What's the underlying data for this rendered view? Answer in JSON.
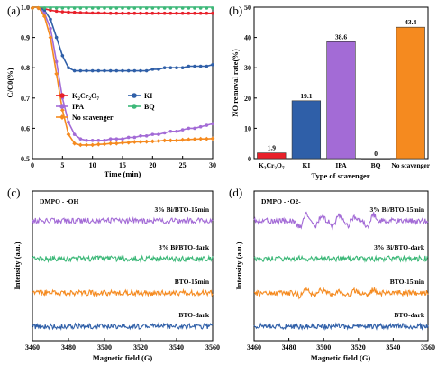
{
  "chart_data": [
    {
      "panel": "(a)",
      "type": "line",
      "xlabel": "Time (min)",
      "ylabel": "C/C0(%)",
      "xlim": [
        0,
        30
      ],
      "ylim": [
        0.5,
        1.0
      ],
      "xticks": [
        "0",
        "5",
        "10",
        "15",
        "20",
        "25",
        "30"
      ],
      "yticks": [
        "0.5",
        "0.6",
        "0.7",
        "0.8",
        "0.9",
        "1.0"
      ],
      "legend_position": "bottom-center",
      "series": [
        {
          "name": "K2Cr2O7",
          "color": "#e8202a",
          "marker": "circle",
          "x": [
            0,
            1,
            2,
            3,
            4,
            5,
            6,
            7,
            8,
            9,
            10,
            11,
            12,
            13,
            14,
            15,
            16,
            17,
            18,
            19,
            20,
            21,
            22,
            23,
            24,
            25,
            26,
            27,
            28,
            29,
            30
          ],
          "y": [
            1.0,
            1.0,
            0.995,
            0.99,
            0.987,
            0.985,
            0.984,
            0.983,
            0.982,
            0.982,
            0.981,
            0.981,
            0.981,
            0.98,
            0.98,
            0.98,
            0.98,
            0.98,
            0.98,
            0.98,
            0.98,
            0.98,
            0.98,
            0.98,
            0.98,
            0.98,
            0.98,
            0.98,
            0.98,
            0.98,
            0.98
          ]
        },
        {
          "name": "KI",
          "color": "#2f5fa8",
          "marker": "circle",
          "x": [
            0,
            1,
            2,
            3,
            4,
            5,
            6,
            7,
            8,
            9,
            10,
            11,
            12,
            13,
            14,
            15,
            16,
            17,
            18,
            19,
            20,
            21,
            22,
            23,
            24,
            25,
            26,
            27,
            28,
            29,
            30
          ],
          "y": [
            1.0,
            1.0,
            0.99,
            0.96,
            0.9,
            0.84,
            0.8,
            0.79,
            0.79,
            0.79,
            0.79,
            0.79,
            0.79,
            0.79,
            0.79,
            0.79,
            0.79,
            0.79,
            0.79,
            0.79,
            0.795,
            0.795,
            0.8,
            0.8,
            0.8,
            0.8,
            0.805,
            0.805,
            0.805,
            0.805,
            0.81
          ]
        },
        {
          "name": "IPA",
          "color": "#a36bd6",
          "marker": "circle",
          "x": [
            0,
            1,
            2,
            3,
            4,
            5,
            6,
            7,
            8,
            9,
            10,
            11,
            12,
            13,
            14,
            15,
            16,
            17,
            18,
            19,
            20,
            21,
            22,
            23,
            24,
            25,
            26,
            27,
            28,
            29,
            30
          ],
          "y": [
            1.0,
            1.0,
            0.98,
            0.93,
            0.82,
            0.7,
            0.62,
            0.58,
            0.565,
            0.56,
            0.56,
            0.56,
            0.56,
            0.565,
            0.565,
            0.565,
            0.57,
            0.57,
            0.575,
            0.575,
            0.58,
            0.58,
            0.585,
            0.59,
            0.59,
            0.595,
            0.6,
            0.6,
            0.605,
            0.61,
            0.615
          ]
        },
        {
          "name": "BQ",
          "color": "#3cb878",
          "marker": "circle",
          "x": [
            0,
            1,
            2,
            3,
            4,
            5,
            6,
            7,
            8,
            9,
            10,
            11,
            12,
            13,
            14,
            15,
            16,
            17,
            18,
            19,
            20,
            21,
            22,
            23,
            24,
            25,
            26,
            27,
            28,
            29,
            30
          ],
          "y": [
            1.0,
            1.0,
            1.0,
            1.0,
            1.0,
            1.01,
            1.02,
            1.03,
            1.03,
            1.03,
            1.025,
            1.02,
            1.02,
            1.02,
            1.02,
            1.02,
            1.02,
            1.02,
            1.02,
            1.02,
            1.02,
            1.02,
            1.02,
            1.02,
            1.02,
            1.02,
            1.02,
            1.02,
            1.02,
            1.02,
            1.02
          ]
        },
        {
          "name": "No scavenger",
          "color": "#f58a1f",
          "marker": "diamond",
          "x": [
            0,
            1,
            2,
            3,
            4,
            5,
            6,
            7,
            8,
            9,
            10,
            11,
            12,
            13,
            14,
            15,
            16,
            17,
            18,
            19,
            20,
            21,
            22,
            23,
            24,
            25,
            26,
            27,
            28,
            29,
            30
          ],
          "y": [
            1.0,
            1.0,
            0.97,
            0.9,
            0.78,
            0.66,
            0.58,
            0.55,
            0.545,
            0.545,
            0.545,
            0.547,
            0.548,
            0.55,
            0.55,
            0.552,
            0.553,
            0.555,
            0.555,
            0.556,
            0.557,
            0.558,
            0.56,
            0.56,
            0.56,
            0.562,
            0.563,
            0.564,
            0.565,
            0.565,
            0.566
          ]
        }
      ]
    },
    {
      "panel": "(b)",
      "type": "bar",
      "xlabel": "Type of scavenger",
      "ylabel": "NO removal rate(%)",
      "ylim": [
        0,
        50
      ],
      "yticks": [
        "0",
        "10",
        "20",
        "30",
        "40",
        "50"
      ],
      "categories": [
        "K2Cr2O7",
        "KI",
        "IPA",
        "BQ",
        "No scavenger"
      ],
      "values": [
        1.9,
        19.1,
        38.6,
        0,
        43.4
      ],
      "value_labels": [
        "1.9",
        "19.1",
        "38.6",
        "0",
        "43.4"
      ],
      "colors": [
        "#e8202a",
        "#2f5fa8",
        "#a36bd6",
        "#3cb878",
        "#f58a1f"
      ]
    },
    {
      "panel": "(c)",
      "type": "line",
      "annotation": "DMPO - ·OH",
      "xlabel": "Magnetic field (G)",
      "ylabel": "Intensity (a.u.)",
      "xlim": [
        3460,
        3560
      ],
      "xticks": [
        "3460",
        "3480",
        "3500",
        "3520",
        "3540",
        "3560"
      ],
      "series": [
        {
          "name": "3% Bi/BTO-15min",
          "color": "#a36bd6",
          "offset": 3
        },
        {
          "name": "3% Bi/BTO-dark",
          "color": "#3cb878",
          "offset": 2
        },
        {
          "name": "BTO-15min",
          "color": "#f58a1f",
          "offset": 1
        },
        {
          "name": "BTO-dark",
          "color": "#2f5fa8",
          "offset": 0
        }
      ]
    },
    {
      "panel": "(d)",
      "type": "line",
      "annotation": "DMPO - ·O2-",
      "xlabel": "Magnetic field (G)",
      "ylabel": "Intensity (a.u.)",
      "xlim": [
        3460,
        3560
      ],
      "xticks": [
        "3460",
        "3480",
        "3500",
        "3520",
        "3540",
        "3560"
      ],
      "series": [
        {
          "name": "3% Bi/BTO-15min",
          "color": "#a36bd6",
          "offset": 3
        },
        {
          "name": "3% Bi/BTO-dark",
          "color": "#3cb878",
          "offset": 2
        },
        {
          "name": "BTO-15min",
          "color": "#f58a1f",
          "offset": 1
        },
        {
          "name": "BTO-dark",
          "color": "#2f5fa8",
          "offset": 0
        }
      ]
    }
  ]
}
